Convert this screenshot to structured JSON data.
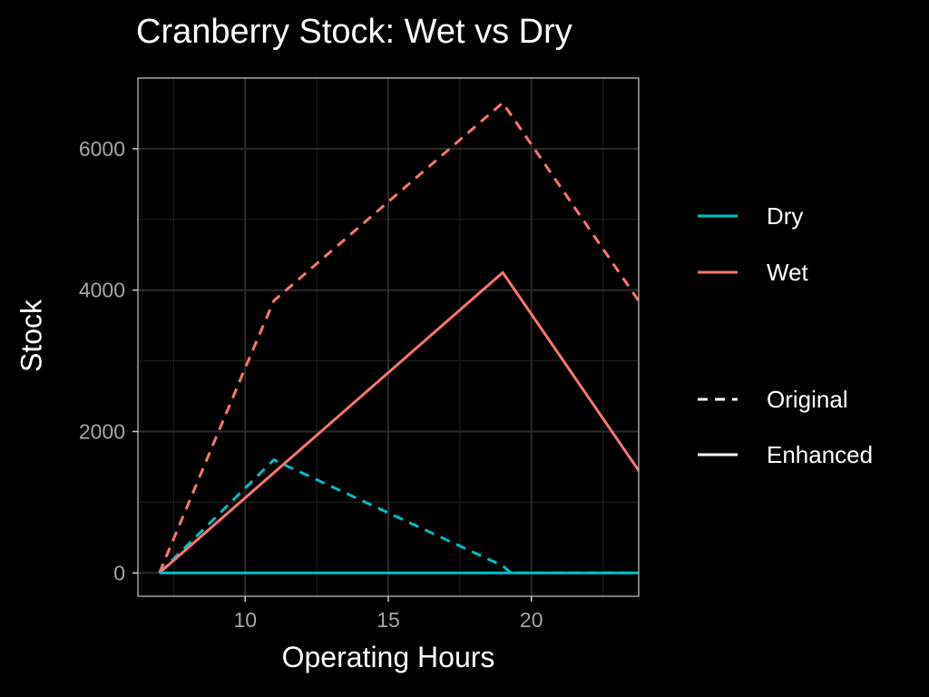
{
  "chart_data": {
    "type": "line",
    "title": "Cranberry Stock: Wet vs Dry",
    "xlabel": "Operating Hours",
    "ylabel": "Stock",
    "xlim": [
      6.25,
      23.75
    ],
    "ylim": [
      -330,
      7000
    ],
    "x_ticks": [
      10,
      15,
      20
    ],
    "y_ticks": [
      0,
      2000,
      4000,
      6000
    ],
    "x_tick_labels": [
      "10",
      "15",
      "20"
    ],
    "y_tick_labels": [
      "0",
      "2000",
      "4000",
      "6000"
    ],
    "grid": true,
    "legend_position": "right",
    "series": [
      {
        "name": "Wet",
        "style": "Original",
        "color": "#F8766D",
        "x": [
          7,
          10,
          11,
          19,
          24
        ],
        "y": [
          0,
          2900,
          3850,
          6650,
          3700
        ]
      },
      {
        "name": "Wet",
        "style": "Enhanced",
        "color": "#F8766D",
        "x": [
          7,
          19,
          24
        ],
        "y": [
          0,
          4250,
          1300
        ]
      },
      {
        "name": "Dry",
        "style": "Original",
        "color": "#00BFC4",
        "x": [
          7,
          11,
          19,
          19.3,
          24
        ],
        "y": [
          0,
          1600,
          100,
          0,
          0
        ]
      },
      {
        "name": "Dry",
        "style": "Enhanced",
        "color": "#00BFC4",
        "x": [
          7,
          24
        ],
        "y": [
          0,
          0
        ]
      }
    ]
  },
  "legend": {
    "colour": [
      {
        "label": "Dry",
        "color": "#00BFC4"
      },
      {
        "label": "Wet",
        "color": "#F8766D"
      }
    ],
    "linetype": [
      {
        "label": "Original",
        "dash": "dashed"
      },
      {
        "label": "Enhanced",
        "dash": "solid"
      }
    ]
  }
}
